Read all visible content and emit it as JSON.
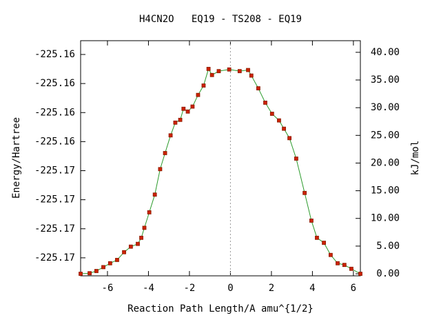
{
  "chart_data": {
    "type": "line",
    "title": "H4CN2O   EQ19 - TS208 - EQ19",
    "xlabel": "Reaction Path Length/A amu^{1/2}",
    "ylabel": "Energy/Hartree",
    "y2label": "kJ/mol",
    "xlim": [
      -7.31,
      6.34
    ],
    "xticks": [
      -6,
      -4,
      -2,
      0,
      2,
      4,
      6
    ],
    "ylim": [
      -225.17374,
      -225.15755
    ],
    "yticks": [
      {
        "value": -225.1585,
        "label": "-225.16"
      },
      {
        "value": -225.1605,
        "label": "-225.16"
      },
      {
        "value": -225.1625,
        "label": "-225.16"
      },
      {
        "value": -225.1645,
        "label": "-225.16"
      },
      {
        "value": -225.1665,
        "label": "-225.17"
      },
      {
        "value": -225.1685,
        "label": "-225.17"
      },
      {
        "value": -225.1705,
        "label": "-225.17"
      },
      {
        "value": -225.1725,
        "label": "-225.17"
      }
    ],
    "y2lim": [
      -0.37,
      42.1
    ],
    "y2ticks": [
      {
        "value": 0,
        "label": "0.00"
      },
      {
        "value": 5,
        "label": "5.00"
      },
      {
        "value": 10,
        "label": "10.00"
      },
      {
        "value": 15,
        "label": "15.00"
      },
      {
        "value": 20,
        "label": "20.00"
      },
      {
        "value": 25,
        "label": "25.00"
      },
      {
        "value": 30,
        "label": "30.00"
      },
      {
        "value": 35,
        "label": "35.00"
      },
      {
        "value": 40,
        "label": "40.00"
      }
    ],
    "vline_x": 0,
    "series": [
      {
        "axis": "y2",
        "line_color": "#2a9a2a",
        "color": "#cc2200",
        "x": [
          -7.31,
          -6.87,
          -6.54,
          -6.2,
          -5.87,
          -5.53,
          -5.19,
          -4.86,
          -4.52,
          -4.35,
          -4.2,
          -3.96,
          -3.69,
          -3.43,
          -3.19,
          -2.92,
          -2.69,
          -2.45,
          -2.29,
          -2.08,
          -1.85,
          -1.58,
          -1.31,
          -1.07,
          -0.9,
          -0.57,
          -0.06,
          0.45,
          0.86,
          1.02,
          1.36,
          1.7,
          2.03,
          2.37,
          2.61,
          2.88,
          3.21,
          3.62,
          3.95,
          4.22,
          4.56,
          4.89,
          5.23,
          5.56,
          5.9,
          6.34
        ],
        "values": [
          0,
          0.1,
          0.5,
          1.2,
          1.9,
          2.5,
          3.9,
          4.9,
          5.4,
          6.5,
          8.3,
          11.1,
          14.3,
          18.9,
          21.8,
          25.0,
          27.3,
          27.8,
          29.8,
          29.3,
          30.2,
          32.3,
          34.0,
          37.0,
          35.9,
          36.6,
          36.9,
          36.6,
          36.8,
          35.8,
          33.5,
          30.9,
          28.9,
          27.7,
          26.2,
          24.5,
          20.8,
          14.6,
          9.6,
          6.5,
          5.6,
          3.4,
          1.9,
          1.6,
          0.9,
          0
        ]
      }
    ]
  }
}
